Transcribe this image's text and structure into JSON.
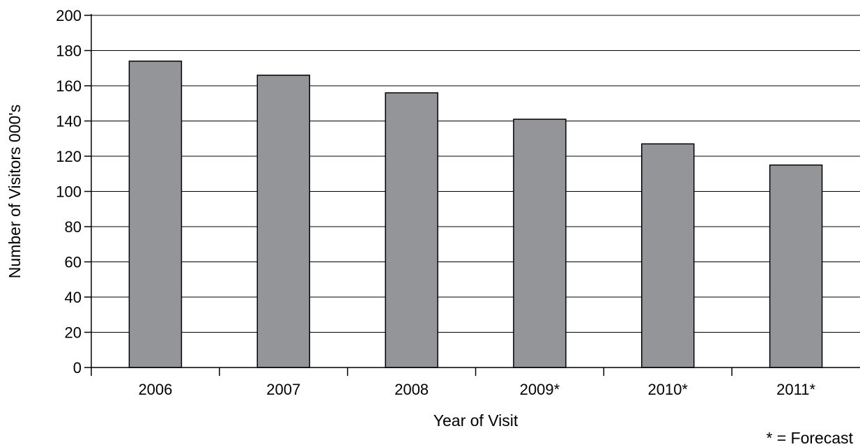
{
  "chart_data": {
    "type": "bar",
    "title": "",
    "xlabel": "Year of Visit",
    "ylabel": "Number of Visitors 000's",
    "categories": [
      "2006",
      "2007",
      "2008",
      "2009*",
      "2010*",
      "2011*"
    ],
    "values": [
      174,
      166,
      156,
      141,
      127,
      115
    ],
    "ylim": [
      0,
      200
    ],
    "yticks": [
      0,
      20,
      40,
      60,
      80,
      100,
      120,
      140,
      160,
      180,
      200
    ],
    "ytick_labels": [
      "0",
      "20",
      "40",
      "60",
      "80",
      "100",
      "120",
      "140",
      "160",
      "180",
      "200"
    ],
    "grid": true,
    "legend": "none",
    "annotation": "* = Forecast",
    "bar_color": "#939598",
    "grid_color": "#000000"
  }
}
